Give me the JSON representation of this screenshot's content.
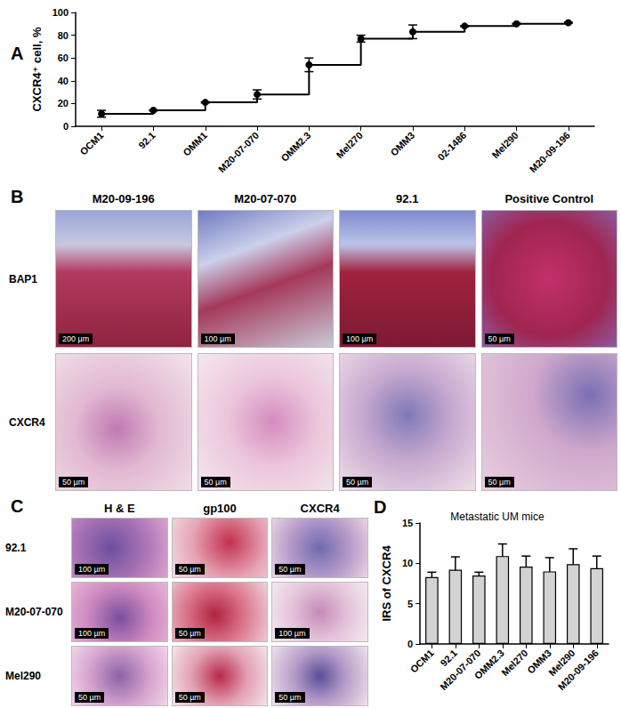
{
  "chart_data": [
    {
      "type": "line",
      "annotations": [
        "A"
      ],
      "y_label": "CXCR4⁺ cell, %",
      "categories": [
        "OCM1",
        "92.1",
        "OMM1",
        "M20-07-070",
        "OMM2.3",
        "Mel270",
        "OMM3",
        "02-1486",
        "Mel290",
        "M20-09-196"
      ],
      "values": [
        11,
        14,
        21,
        28,
        54,
        77,
        83,
        88,
        90,
        91
      ],
      "errors": [
        3,
        0.5,
        0.5,
        4,
        6,
        3,
        6,
        0.5,
        0.5,
        0.5
      ],
      "color": "#000000",
      "marker": "circle",
      "line_style": "step",
      "ylim": [
        0,
        100
      ],
      "yticks": [
        0,
        20,
        40,
        60,
        80,
        100
      ],
      "grid": false
    },
    {
      "type": "bar",
      "annotations": [
        "D"
      ],
      "title": "Metastatic UM mice",
      "y_label": "IRS of CXCR4",
      "categories": [
        "OCM1",
        "92.1",
        "M20-07-070",
        "OMM2.3",
        "Mel270",
        "OMM3",
        "Mel290",
        "M20-09-196"
      ],
      "values": [
        8.3,
        9.2,
        8.5,
        10.9,
        9.6,
        9.0,
        9.9,
        9.4
      ],
      "errors": [
        0.6,
        1.6,
        0.4,
        1.5,
        1.3,
        1.7,
        1.9,
        1.5
      ],
      "color": "#d3d3d3",
      "ylim": [
        0,
        15
      ],
      "yticks": [
        0,
        5,
        10,
        15
      ],
      "grid": false
    }
  ],
  "panels": {
    "B": {
      "letter": "B",
      "columns": [
        "M20-09-196",
        "M20-07-070",
        "92.1",
        "Positive Control"
      ],
      "rows": [
        {
          "label": "BAP1",
          "scale_bars": [
            "200 µm",
            "100 µm",
            "100 µm",
            "50 µm"
          ]
        },
        {
          "label": "CXCR4",
          "scale_bars": [
            "50 µm",
            "50 µm",
            "50 µm",
            "50 µm"
          ]
        }
      ]
    },
    "C": {
      "letter": "C",
      "columns": [
        "H & E",
        "gp100",
        "CXCR4"
      ],
      "rows": [
        {
          "label": "92.1",
          "scale_bars": [
            "100 µm",
            "50 µm",
            "50 µm"
          ]
        },
        {
          "label": "M20-07-070",
          "scale_bars": [
            "100 µm",
            "50 µm",
            "100 µm"
          ]
        },
        {
          "label": "Mel290",
          "scale_bars": [
            "50 µm",
            "50 µm",
            "50 µm"
          ]
        }
      ]
    }
  }
}
